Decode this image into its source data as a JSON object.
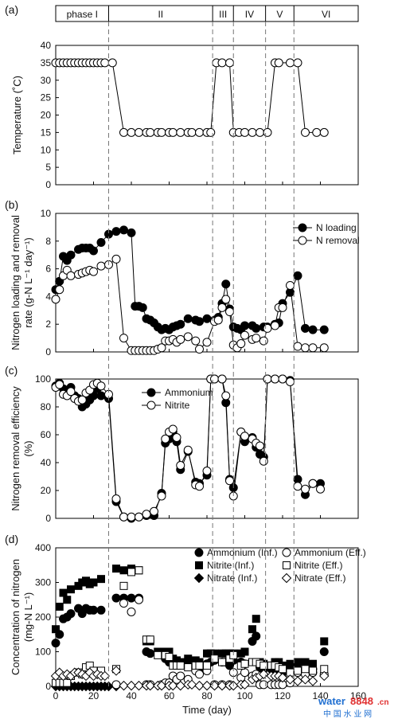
{
  "phases": {
    "labels": [
      "phase I",
      "II",
      "III",
      "IV",
      "V",
      "VI"
    ],
    "boundaries": [
      0,
      28,
      83,
      94,
      111,
      126,
      160
    ]
  },
  "watermark": {
    "text": "water",
    "num": "8848",
    "suffix": ".cn",
    "cn": "中 国 水 业 网"
  },
  "chart_data": [
    {
      "id": "a",
      "panel_label": "(a)",
      "type": "line",
      "ylabel": "Temperature (˚C)",
      "xlim": [
        0,
        160
      ],
      "ylim": [
        0,
        40
      ],
      "yticks": [
        0,
        5,
        10,
        15,
        20,
        25,
        30,
        35,
        40
      ],
      "series": [
        {
          "marker": "open-circle",
          "x": [
            0,
            2,
            4,
            6,
            8,
            10,
            12,
            14,
            16,
            18,
            20,
            22,
            24,
            26,
            30,
            36,
            40,
            44,
            48,
            50,
            54,
            56,
            60,
            62,
            66,
            70,
            72,
            76,
            80,
            82,
            85,
            88,
            92,
            94,
            97,
            100,
            104,
            108,
            112,
            116,
            118,
            124,
            128,
            132,
            138,
            142
          ],
          "y": [
            35,
            35,
            35,
            35,
            35,
            35,
            35,
            35,
            35,
            35,
            35,
            35,
            35,
            35,
            35,
            15,
            15,
            15,
            15,
            15,
            15,
            15,
            15,
            15,
            15,
            15,
            15,
            15,
            15,
            15,
            35,
            35,
            35,
            15,
            15,
            15,
            15,
            15,
            15,
            35,
            35,
            35,
            35,
            15,
            15,
            15
          ]
        }
      ]
    },
    {
      "id": "b",
      "panel_label": "(b)",
      "type": "line",
      "ylabel": "Nitrogen loading and removal rate (g-N L⁻¹ day⁻¹)",
      "xlim": [
        0,
        160
      ],
      "ylim": [
        0,
        10
      ],
      "yticks": [
        0,
        2,
        4,
        6,
        8,
        10
      ],
      "legend": "top-right",
      "series": [
        {
          "name": "N loading",
          "marker": "filled-circle",
          "x": [
            0,
            2,
            4,
            6,
            8,
            12,
            14,
            16,
            18,
            20,
            24,
            28,
            32,
            36,
            40,
            42,
            44,
            46,
            48,
            50,
            52,
            54,
            56,
            58,
            60,
            62,
            64,
            66,
            70,
            74,
            76,
            80,
            84,
            86,
            88,
            90,
            92,
            94,
            96,
            98,
            100,
            104,
            106,
            110,
            112,
            116,
            118,
            120,
            124,
            128,
            132,
            136,
            142
          ],
          "y": [
            4.5,
            5.1,
            6.9,
            6.6,
            7.0,
            7.4,
            7.5,
            7.5,
            7.5,
            7.3,
            7.9,
            8.5,
            8.7,
            8.8,
            8.6,
            3.3,
            3.3,
            3.2,
            2.4,
            2.3,
            2.1,
            1.8,
            1.6,
            1.7,
            1.6,
            1.8,
            1.9,
            2.0,
            2.4,
            2.3,
            2.2,
            2.4,
            2.3,
            2.5,
            3.5,
            4.9,
            3.1,
            1.8,
            1.7,
            1.6,
            1.9,
            1.9,
            1.7,
            1.8,
            1.8,
            2.0,
            2.1,
            3.5,
            4.3,
            5.5,
            1.7,
            1.6,
            1.6
          ]
        },
        {
          "name": "N removal",
          "marker": "open-circle",
          "x": [
            0,
            2,
            4,
            6,
            8,
            12,
            14,
            16,
            18,
            20,
            24,
            28,
            32,
            36,
            40,
            42,
            44,
            46,
            48,
            50,
            52,
            54,
            56,
            58,
            60,
            62,
            64,
            66,
            70,
            74,
            76,
            80,
            84,
            86,
            88,
            90,
            92,
            94,
            96,
            98,
            100,
            104,
            106,
            110,
            112,
            116,
            118,
            120,
            124,
            128,
            132,
            136,
            142
          ],
          "y": [
            3.8,
            4.5,
            5.5,
            5.9,
            5.5,
            5.6,
            5.7,
            5.8,
            5.9,
            5.8,
            6.2,
            6.3,
            6.7,
            1.0,
            0.1,
            0.1,
            0.1,
            0.1,
            0.1,
            0.1,
            0.1,
            0.2,
            0.3,
            0.8,
            0.8,
            0.9,
            0.7,
            0.9,
            1.1,
            0.8,
            0.2,
            0.7,
            2.2,
            2.3,
            3.2,
            3.8,
            2.9,
            0.5,
            0.3,
            0.6,
            1.2,
            0.9,
            1.0,
            0.8,
            1.7,
            1.9,
            3.2,
            3.2,
            4.8,
            0.4,
            0.3,
            0.3,
            0.3
          ]
        }
      ]
    },
    {
      "id": "c",
      "panel_label": "(c)",
      "type": "line",
      "ylabel": "Nitrogen removal efficiency (%)",
      "xlim": [
        0,
        160
      ],
      "ylim": [
        0,
        100
      ],
      "yticks": [
        0,
        20,
        40,
        60,
        80,
        100
      ],
      "legend": "top-center",
      "series": [
        {
          "name": "Ammonium",
          "marker": "filled-circle",
          "x": [
            0,
            2,
            4,
            6,
            8,
            10,
            12,
            14,
            16,
            18,
            20,
            22,
            24,
            28,
            32,
            36,
            40,
            44,
            48,
            52,
            56,
            58,
            60,
            62,
            64,
            66,
            70,
            74,
            76,
            80,
            82,
            84,
            88,
            90,
            92,
            94,
            98,
            100,
            104,
            106,
            108,
            110,
            112,
            116,
            120,
            124,
            128,
            132,
            136,
            140
          ],
          "y": [
            95,
            97,
            93,
            92,
            94,
            88,
            86,
            80,
            82,
            85,
            88,
            93,
            88,
            86,
            12,
            1,
            0,
            1,
            2,
            2,
            18,
            54,
            57,
            62,
            55,
            35,
            48,
            26,
            25,
            31,
            100,
            100,
            100,
            83,
            28,
            22,
            62,
            55,
            58,
            51,
            46,
            44,
            100,
            100,
            100,
            99,
            28,
            17,
            25,
            25
          ]
        },
        {
          "name": "Nitrite",
          "marker": "open-circle",
          "x": [
            0,
            2,
            4,
            6,
            8,
            10,
            12,
            14,
            16,
            18,
            20,
            22,
            24,
            28,
            32,
            36,
            40,
            44,
            48,
            52,
            56,
            58,
            60,
            62,
            64,
            66,
            70,
            74,
            76,
            80,
            82,
            84,
            88,
            90,
            92,
            94,
            98,
            100,
            104,
            106,
            108,
            110,
            112,
            116,
            120,
            124,
            128,
            132,
            136,
            140
          ],
          "y": [
            94,
            96,
            89,
            88,
            91,
            86,
            84,
            85,
            90,
            92,
            96,
            97,
            95,
            89,
            14,
            1,
            1,
            1,
            3,
            5,
            16,
            57,
            62,
            64,
            58,
            38,
            49,
            24,
            23,
            34,
            100,
            100,
            100,
            88,
            27,
            16,
            62,
            59,
            57,
            54,
            52,
            41,
            100,
            100,
            100,
            98,
            23,
            21,
            25,
            21
          ]
        }
      ]
    },
    {
      "id": "d",
      "panel_label": "(d)",
      "type": "scatter",
      "ylabel": "Concentration of nitrogen (mg-N L⁻¹)",
      "xlabel": "Time (day)",
      "xlim": [
        0,
        160
      ],
      "xticks": [
        0,
        20,
        40,
        60,
        80,
        100,
        120,
        140,
        160
      ],
      "ylim": [
        0,
        400
      ],
      "yticks": [
        0,
        100,
        200,
        300,
        400
      ],
      "legend": "top-right",
      "series": [
        {
          "name": "Ammonium (Inf.)",
          "marker": "filled-circle",
          "x": [
            0,
            2,
            4,
            6,
            8,
            12,
            14,
            16,
            18,
            20,
            24,
            32,
            36,
            40,
            44,
            48,
            50,
            54,
            58,
            60,
            62,
            64,
            66,
            70,
            74,
            76,
            80,
            82,
            84,
            88,
            90,
            92,
            94,
            98,
            100,
            104,
            106,
            108,
            110,
            114,
            116,
            118,
            120,
            124,
            128,
            132,
            136,
            142
          ],
          "y": [
            125,
            150,
            195,
            200,
            210,
            225,
            210,
            225,
            220,
            220,
            220,
            255,
            255,
            255,
            255,
            100,
            95,
            95,
            80,
            70,
            65,
            70,
            65,
            60,
            55,
            50,
            65,
            70,
            75,
            70,
            70,
            60,
            75,
            70,
            65,
            130,
            145,
            55,
            50,
            50,
            40,
            45,
            40,
            50,
            50,
            50,
            50,
            100
          ]
        },
        {
          "name": "Nitrite (Inf.)",
          "marker": "filled-square",
          "x": [
            0,
            2,
            4,
            6,
            8,
            12,
            14,
            16,
            18,
            20,
            24,
            32,
            36,
            40,
            44,
            48,
            50,
            54,
            58,
            60,
            62,
            64,
            66,
            70,
            74,
            76,
            80,
            82,
            84,
            88,
            90,
            92,
            94,
            98,
            100,
            104,
            106,
            108,
            110,
            114,
            116,
            118,
            120,
            124,
            128,
            132,
            136,
            142
          ],
          "y": [
            165,
            230,
            270,
            250,
            280,
            290,
            300,
            305,
            295,
            300,
            310,
            340,
            335,
            340,
            335,
            130,
            130,
            100,
            100,
            100,
            80,
            75,
            70,
            80,
            75,
            70,
            95,
            95,
            95,
            95,
            95,
            95,
            95,
            95,
            100,
            165,
            195,
            70,
            65,
            60,
            70,
            70,
            60,
            65,
            70,
            70,
            65,
            130
          ]
        },
        {
          "name": "Nitrate (Inf.)",
          "marker": "filled-diamond",
          "x": [
            0,
            2,
            4,
            6,
            8,
            10,
            12,
            14,
            16,
            18,
            20,
            22,
            24,
            26,
            28,
            32
          ],
          "y": [
            0,
            0,
            0,
            0,
            0,
            0,
            0,
            0,
            0,
            0,
            0,
            0,
            0,
            0,
            0,
            0
          ]
        },
        {
          "name": "Ammonium (Eff.)",
          "marker": "open-circle",
          "x": [
            32,
            36,
            40,
            44,
            48,
            50,
            56,
            58,
            60,
            62,
            64,
            66,
            70,
            74,
            76,
            80,
            84,
            88,
            92,
            94,
            98,
            100,
            104,
            106,
            108,
            110,
            114,
            116,
            118,
            120,
            124,
            128,
            132,
            136,
            142
          ],
          "y": [
            5,
            240,
            215,
            250,
            5,
            5,
            5,
            10,
            10,
            30,
            20,
            30,
            20,
            45,
            35,
            45,
            5,
            5,
            5,
            40,
            25,
            40,
            30,
            35,
            5,
            5,
            5,
            5,
            5,
            5,
            10,
            40,
            35,
            40,
            35
          ]
        },
        {
          "name": "Nitrite (Eff.)",
          "marker": "open-square",
          "x": [
            0,
            2,
            4,
            6,
            8,
            12,
            14,
            16,
            18,
            20,
            24,
            32,
            36,
            40,
            44,
            48,
            50,
            54,
            58,
            60,
            62,
            64,
            66,
            70,
            74,
            76,
            80,
            84,
            88,
            92,
            94,
            98,
            100,
            104,
            106,
            108,
            110,
            114,
            116,
            118,
            120,
            124,
            128,
            132,
            136,
            142
          ],
          "y": [
            10,
            10,
            10,
            10,
            30,
            40,
            35,
            55,
            60,
            45,
            45,
            50,
            290,
            330,
            335,
            135,
            135,
            90,
            90,
            85,
            60,
            60,
            60,
            55,
            60,
            60,
            60,
            80,
            70,
            80,
            90,
            60,
            65,
            70,
            70,
            65,
            60,
            60,
            60,
            55,
            50,
            40,
            45,
            50,
            45,
            50
          ]
        },
        {
          "name": "Nitrate (Eff.)",
          "marker": "open-diamond",
          "x": [
            0,
            2,
            4,
            6,
            8,
            10,
            12,
            14,
            16,
            18,
            20,
            22,
            24,
            26,
            32,
            36,
            40,
            44,
            48,
            50,
            54,
            56,
            60,
            62,
            66,
            70,
            72,
            76,
            80,
            84,
            88,
            92,
            94,
            98,
            100,
            104,
            106,
            108,
            110,
            114,
            116,
            118,
            120,
            124,
            128,
            132,
            136,
            142
          ],
          "y": [
            30,
            40,
            30,
            35,
            30,
            40,
            40,
            35,
            30,
            40,
            30,
            35,
            30,
            30,
            45,
            2,
            2,
            2,
            2,
            2,
            2,
            2,
            2,
            2,
            2,
            5,
            5,
            2,
            2,
            2,
            2,
            2,
            2,
            5,
            5,
            20,
            25,
            30,
            35,
            30,
            30,
            30,
            25,
            20,
            15,
            20,
            15,
            30
          ]
        }
      ]
    }
  ]
}
